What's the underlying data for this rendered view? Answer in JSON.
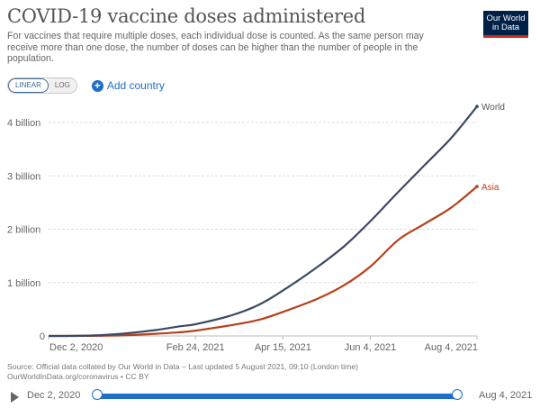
{
  "header": {
    "title": "COVID-19 vaccine doses administered",
    "subtitle": "For vaccines that require multiple doses, each individual dose is counted. As the same person may receive more than one dose, the number of doses can be higher than the number of people in the population.",
    "logo_line1": "Our World",
    "logo_line2": "in Data"
  },
  "controls": {
    "linear_label": "LINEAR",
    "log_label": "LOG",
    "add_country_label": "Add country",
    "add_icon": "plus-circle-icon"
  },
  "footer": {
    "source": "Source: Official data collated by Our World in Data – Last updated 5 August 2021, 09:10 (London time)",
    "link": "OurWorldInData.org/coronavirus • CC BY"
  },
  "timeline": {
    "start_label": "Dec 2, 2020",
    "end_label": "Aug 4, 2021",
    "play_icon": "play-icon"
  },
  "colors": {
    "world": "#3b4a64",
    "asia": "#b8401c",
    "accent": "#1f6ec9"
  },
  "chart_data": {
    "type": "line",
    "title": "COVID-19 vaccine doses administered",
    "xlabel": "",
    "ylabel": "",
    "x_unit": "days since Dec 2, 2020",
    "ylim": [
      0,
      4.3
    ],
    "y_unit": "billion",
    "y_ticks": [
      {
        "value": 0,
        "label": "0"
      },
      {
        "value": 1,
        "label": "1 billion"
      },
      {
        "value": 2,
        "label": "2 billion"
      },
      {
        "value": 3,
        "label": "3 billion"
      },
      {
        "value": 4,
        "label": "4 billion"
      }
    ],
    "x_ticks": [
      {
        "value": 0,
        "label": "Dec 2, 2020"
      },
      {
        "value": 84,
        "label": "Feb 24, 2021"
      },
      {
        "value": 134,
        "label": "Apr 15, 2021"
      },
      {
        "value": 184,
        "label": "Jun 4, 2021"
      },
      {
        "value": 245,
        "label": "Aug 4, 2021"
      }
    ],
    "xlim": [
      0,
      245
    ],
    "grid": true,
    "legend": "inline-right",
    "series": [
      {
        "name": "World",
        "x": [
          0,
          14,
          30,
          45,
          61,
          75,
          84,
          104,
          120,
          134,
          154,
          169,
          184,
          200,
          215,
          230,
          245
        ],
        "values": [
          0,
          0.002,
          0.015,
          0.05,
          0.11,
          0.18,
          0.22,
          0.38,
          0.58,
          0.85,
          1.3,
          1.68,
          2.15,
          2.7,
          3.2,
          3.7,
          4.3
        ]
      },
      {
        "name": "Asia",
        "x": [
          0,
          14,
          30,
          45,
          61,
          75,
          84,
          104,
          120,
          134,
          154,
          169,
          184,
          200,
          215,
          230,
          245
        ],
        "values": [
          0,
          0.0005,
          0.004,
          0.015,
          0.04,
          0.07,
          0.1,
          0.2,
          0.3,
          0.45,
          0.7,
          0.95,
          1.3,
          1.8,
          2.1,
          2.4,
          2.8
        ]
      }
    ]
  }
}
